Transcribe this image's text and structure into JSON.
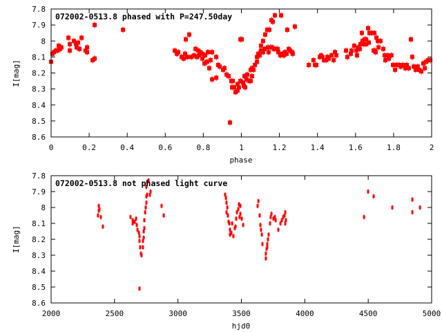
{
  "colors": {
    "points": "#ff0000",
    "axes": "#000000",
    "background": "#ffffff"
  },
  "chart_data": [
    {
      "type": "scatter",
      "title": "072002-0513.8 phased with P=247.50day",
      "xlabel": "phase",
      "ylabel": "I[mag]",
      "xlim": [
        0,
        2
      ],
      "ylim": [
        7.8,
        8.6
      ],
      "y_inverted": true,
      "grid": false,
      "xticks": [
        "0",
        "0.2",
        "0.4",
        "0.6",
        "0.8",
        "1",
        "1.2",
        "1.4",
        "1.6",
        "1.8",
        "2"
      ],
      "yticks": [
        "7.8",
        "7.9",
        "8",
        "8.1",
        "8.2",
        "8.3",
        "8.4",
        "8.5",
        "8.6"
      ],
      "points": [
        [
          0.0,
          8.13
        ],
        [
          0.007,
          8.08
        ],
        [
          0.015,
          8.07
        ],
        [
          0.025,
          8.06
        ],
        [
          0.033,
          8.06
        ],
        [
          0.04,
          8.03
        ],
        [
          0.047,
          8.05
        ],
        [
          0.054,
          8.04
        ],
        [
          0.091,
          7.98
        ],
        [
          0.098,
          8.02
        ],
        [
          0.098,
          8.06
        ],
        [
          0.12,
          8.0
        ],
        [
          0.131,
          8.02
        ],
        [
          0.142,
          8.01
        ],
        [
          0.134,
          8.04
        ],
        [
          0.149,
          8.05
        ],
        [
          0.16,
          7.98
        ],
        [
          0.181,
          8.06
        ],
        [
          0.189,
          8.04
        ],
        [
          0.189,
          8.07
        ],
        [
          0.218,
          8.12
        ],
        [
          0.229,
          8.11
        ],
        [
          0.229,
          7.9
        ],
        [
          0.378,
          7.93
        ],
        [
          0.65,
          8.06
        ],
        [
          0.661,
          8.08
        ],
        [
          0.668,
          8.07
        ],
        [
          0.686,
          8.1
        ],
        [
          0.697,
          8.11
        ],
        [
          0.704,
          8.08
        ],
        [
          0.708,
          7.99
        ],
        [
          0.715,
          8.1
        ],
        [
          0.726,
          7.96
        ],
        [
          0.737,
          8.1
        ],
        [
          0.751,
          8.09
        ],
        [
          0.759,
          8.05
        ],
        [
          0.766,
          8.1
        ],
        [
          0.773,
          8.06
        ],
        [
          0.777,
          8.09
        ],
        [
          0.784,
          8.07
        ],
        [
          0.795,
          8.11
        ],
        [
          0.795,
          8.08
        ],
        [
          0.806,
          8.14
        ],
        [
          0.809,
          8.09
        ],
        [
          0.82,
          8.13
        ],
        [
          0.824,
          8.07
        ],
        [
          0.831,
          8.17
        ],
        [
          0.838,
          8.12
        ],
        [
          0.846,
          8.07
        ],
        [
          0.846,
          8.24
        ],
        [
          0.868,
          8.1
        ],
        [
          0.868,
          8.23
        ],
        [
          0.878,
          8.15
        ],
        [
          0.886,
          8.16
        ],
        [
          0.904,
          8.18
        ],
        [
          0.911,
          8.17
        ],
        [
          0.922,
          8.21
        ],
        [
          0.933,
          8.22
        ],
        [
          0.947,
          8.25
        ],
        [
          0.955,
          8.25
        ],
        [
          0.951,
          8.29
        ],
        [
          0.962,
          8.29
        ],
        [
          0.969,
          8.32
        ],
        [
          0.98,
          8.31
        ],
        [
          0.98,
          8.27
        ],
        [
          0.987,
          8.29
        ],
        [
          0.995,
          8.25
        ],
        [
          0.94,
          8.51
        ],
        [
          0.995,
          7.99
        ],
        [
          1.002,
          7.99
        ],
        [
          1.009,
          8.26
        ],
        [
          1.013,
          8.28
        ],
        [
          1.02,
          8.29
        ],
        [
          1.016,
          8.22
        ],
        [
          1.027,
          8.24
        ],
        [
          1.031,
          8.21
        ],
        [
          1.042,
          8.25
        ],
        [
          1.049,
          8.25
        ],
        [
          1.049,
          8.18
        ],
        [
          1.056,
          8.17
        ],
        [
          1.056,
          8.22
        ],
        [
          1.064,
          8.18
        ],
        [
          1.071,
          8.15
        ],
        [
          1.082,
          8.13
        ],
        [
          1.082,
          8.1
        ],
        [
          1.089,
          8.08
        ],
        [
          1.096,
          8.09
        ],
        [
          1.103,
          8.06
        ],
        [
          1.103,
          8.03
        ],
        [
          1.114,
          8.0
        ],
        [
          1.114,
          8.07
        ],
        [
          1.122,
          8.05
        ],
        [
          1.125,
          7.96
        ],
        [
          1.136,
          7.93
        ],
        [
          1.14,
          8.04
        ],
        [
          1.147,
          7.93
        ],
        [
          1.143,
          8.07
        ],
        [
          1.154,
          8.04
        ],
        [
          1.158,
          7.87
        ],
        [
          1.165,
          7.88
        ],
        [
          1.162,
          8.04
        ],
        [
          1.172,
          8.05
        ],
        [
          1.176,
          7.84
        ],
        [
          1.183,
          8.05
        ],
        [
          1.191,
          8.05
        ],
        [
          1.194,
          8.07
        ],
        [
          1.205,
          8.09
        ],
        [
          1.209,
          7.84
        ],
        [
          1.216,
          8.08
        ],
        [
          1.223,
          8.09
        ],
        [
          1.23,
          8.07
        ],
        [
          1.238,
          8.08
        ],
        [
          1.241,
          7.93
        ],
        [
          1.249,
          8.05
        ],
        [
          1.256,
          8.06
        ],
        [
          1.267,
          8.07
        ],
        [
          1.27,
          8.08
        ],
        [
          1.281,
          7.91
        ],
        [
          1.354,
          8.15
        ],
        [
          1.379,
          8.12
        ],
        [
          1.387,
          8.15
        ],
        [
          1.394,
          8.15
        ],
        [
          1.412,
          8.1
        ],
        [
          1.419,
          8.09
        ],
        [
          1.426,
          8.1
        ],
        [
          1.434,
          8.12
        ],
        [
          1.445,
          8.12
        ],
        [
          1.452,
          8.1
        ],
        [
          1.459,
          8.11
        ],
        [
          1.474,
          8.09
        ],
        [
          1.485,
          8.12
        ],
        [
          1.492,
          8.07
        ],
        [
          1.499,
          8.09
        ],
        [
          1.55,
          8.06
        ],
        [
          1.557,
          8.1
        ],
        [
          1.575,
          8.08
        ],
        [
          1.579,
          8.06
        ],
        [
          1.593,
          8.03
        ],
        [
          1.604,
          8.06
        ],
        [
          1.608,
          8.09
        ],
        [
          1.615,
          8.04
        ],
        [
          1.622,
          8.05
        ],
        [
          1.626,
          8.02
        ],
        [
          1.633,
          7.95
        ],
        [
          1.637,
          8.0
        ],
        [
          1.644,
          8.02
        ],
        [
          1.648,
          7.99
        ],
        [
          1.655,
          8.02
        ],
        [
          1.655,
          7.99
        ],
        [
          1.666,
          7.92
        ],
        [
          1.67,
          8.01
        ],
        [
          1.673,
          7.95
        ],
        [
          1.684,
          7.95
        ],
        [
          1.695,
          8.06
        ],
        [
          1.699,
          7.95
        ],
        [
          1.702,
          8.06
        ],
        [
          1.706,
          8.07
        ],
        [
          1.71,
          7.98
        ],
        [
          1.717,
          8.0
        ],
        [
          1.721,
          8.04
        ],
        [
          1.731,
          8.0
        ],
        [
          1.746,
          8.05
        ],
        [
          1.753,
          8.09
        ],
        [
          1.757,
          8.12
        ],
        [
          1.768,
          8.09
        ],
        [
          1.775,
          8.11
        ],
        [
          1.789,
          8.09
        ],
        [
          1.797,
          8.15
        ],
        [
          1.808,
          8.18
        ],
        [
          1.818,
          8.15
        ],
        [
          1.829,
          8.15
        ],
        [
          1.837,
          8.16
        ],
        [
          1.848,
          8.15
        ],
        [
          1.862,
          8.17
        ],
        [
          1.869,
          8.15
        ],
        [
          1.88,
          8.17
        ],
        [
          1.891,
          7.99
        ],
        [
          1.898,
          8.1
        ],
        [
          1.906,
          8.16
        ],
        [
          1.916,
          8.18
        ],
        [
          1.927,
          8.16
        ],
        [
          1.935,
          8.18
        ],
        [
          1.946,
          8.19
        ],
        [
          1.956,
          8.14
        ],
        [
          1.964,
          8.17
        ],
        [
          1.971,
          8.13
        ],
        [
          1.982,
          8.12
        ],
        [
          1.993,
          8.12
        ]
      ]
    },
    {
      "type": "scatter",
      "title": "072002-0513.8 not phased light curve",
      "xlabel": "hjd0",
      "ylabel": "I[mag]",
      "xlim": [
        2000,
        5000
      ],
      "ylim": [
        7.8,
        8.6
      ],
      "y_inverted": true,
      "grid": false,
      "xticks": [
        "2000",
        "2500",
        "3000",
        "3500",
        "4000",
        "4500",
        "5000"
      ],
      "yticks": [
        "7.8",
        "7.9",
        "8",
        "8.1",
        "8.2",
        "8.3",
        "8.4",
        "8.5",
        "8.6"
      ],
      "points": [
        [
          2376,
          7.99
        ],
        [
          2381,
          8.01
        ],
        [
          2376,
          8.02
        ],
        [
          2370,
          8.05
        ],
        [
          2392,
          8.06
        ],
        [
          2408,
          8.12
        ],
        [
          2626,
          8.06
        ],
        [
          2643,
          8.08
        ],
        [
          2659,
          8.09
        ],
        [
          2670,
          8.07
        ],
        [
          2643,
          8.1
        ],
        [
          2675,
          8.11
        ],
        [
          2681,
          8.14
        ],
        [
          2692,
          8.16
        ],
        [
          2697,
          8.18
        ],
        [
          2697,
          8.21
        ],
        [
          2702,
          8.25
        ],
        [
          2708,
          8.29
        ],
        [
          2713,
          8.3
        ],
        [
          2724,
          8.25
        ],
        [
          2724,
          8.21
        ],
        [
          2730,
          8.19
        ],
        [
          2730,
          8.15
        ],
        [
          2735,
          8.13
        ],
        [
          2735,
          8.08
        ],
        [
          2741,
          8.03
        ],
        [
          2746,
          8.0
        ],
        [
          2751,
          7.97
        ],
        [
          2751,
          7.93
        ],
        [
          2757,
          7.92
        ],
        [
          2751,
          7.87
        ],
        [
          2757,
          7.84
        ],
        [
          2768,
          7.83
        ],
        [
          2779,
          7.92
        ],
        [
          2784,
          7.9
        ],
        [
          2871,
          7.99
        ],
        [
          2888,
          8.05
        ],
        [
          2697,
          8.51
        ],
        [
          3372,
          7.92
        ],
        [
          3378,
          7.94
        ],
        [
          3383,
          7.97
        ],
        [
          3389,
          8.0
        ],
        [
          3383,
          8.03
        ],
        [
          3394,
          8.05
        ],
        [
          3399,
          8.09
        ],
        [
          3405,
          8.1
        ],
        [
          3427,
          8.1
        ],
        [
          3410,
          8.14
        ],
        [
          3410,
          8.17
        ],
        [
          3421,
          8.16
        ],
        [
          3437,
          8.18
        ],
        [
          3448,
          8.13
        ],
        [
          3454,
          8.12
        ],
        [
          3459,
          8.07
        ],
        [
          3465,
          8.03
        ],
        [
          3476,
          8.01
        ],
        [
          3481,
          7.98
        ],
        [
          3492,
          7.99
        ],
        [
          3492,
          8.04
        ],
        [
          3486,
          8.06
        ],
        [
          3503,
          8.07
        ],
        [
          3514,
          8.11
        ],
        [
          3634,
          7.96
        ],
        [
          3628,
          7.99
        ],
        [
          3644,
          8.05
        ],
        [
          3650,
          8.11
        ],
        [
          3655,
          8.14
        ],
        [
          3661,
          8.17
        ],
        [
          3715,
          8.17
        ],
        [
          3710,
          8.2
        ],
        [
          3704,
          8.23
        ],
        [
          3704,
          8.25
        ],
        [
          3699,
          8.26
        ],
        [
          3693,
          8.29
        ],
        [
          3693,
          8.32
        ],
        [
          3666,
          8.23
        ],
        [
          3731,
          8.06
        ],
        [
          3726,
          8.1
        ],
        [
          3737,
          8.04
        ],
        [
          3753,
          8.07
        ],
        [
          3764,
          8.06
        ],
        [
          3770,
          8.08
        ],
        [
          3791,
          8.14
        ],
        [
          3808,
          8.1
        ],
        [
          3819,
          8.08
        ],
        [
          3830,
          8.06
        ],
        [
          3840,
          8.05
        ],
        [
          3846,
          8.03
        ],
        [
          3851,
          8.08
        ],
        [
          3846,
          8.1
        ],
        [
          4499,
          7.9
        ],
        [
          4543,
          7.93
        ],
        [
          4467,
          8.06
        ],
        [
          4690,
          8.0
        ],
        [
          4848,
          7.95
        ],
        [
          4848,
          8.03
        ],
        [
          4908,
          8.0
        ]
      ]
    }
  ]
}
